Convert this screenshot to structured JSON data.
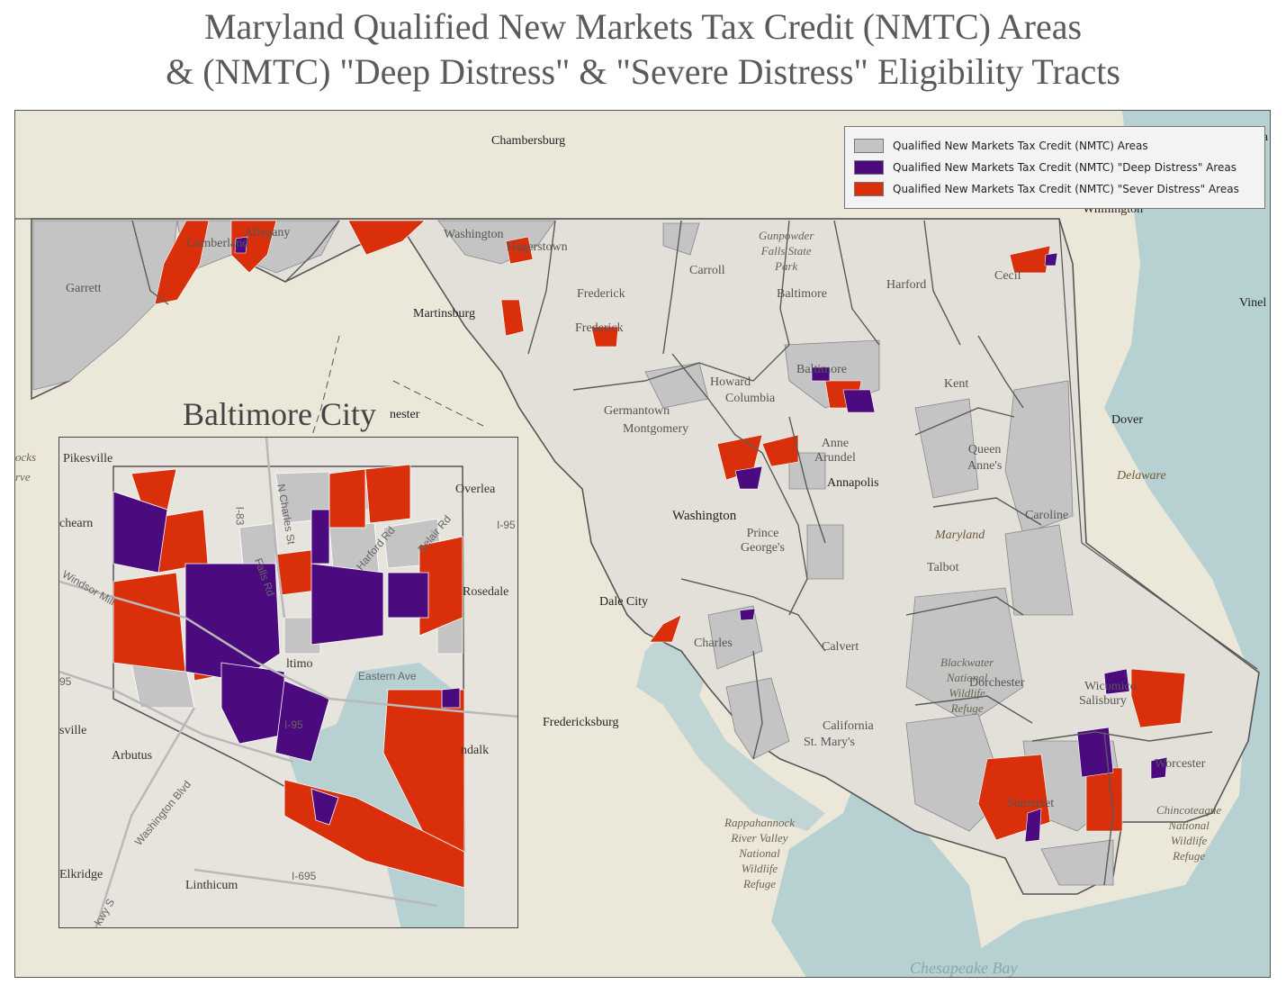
{
  "title": {
    "line1": "Maryland Qualified New Markets Tax Credit (NMTC) Areas",
    "line2": "& (NMTC) \"Deep Distress\" & \"Severe Distress\" Eligibility Tracts"
  },
  "legend": {
    "items": [
      {
        "label": "Qualified New Markets Tax Credit (NMTC) Areas",
        "color": "#c4c4c4"
      },
      {
        "label": "Qualified New Markets Tax Credit (NMTC) \"Deep Distress\" Areas",
        "color": "#4b0a7d"
      },
      {
        "label": "Qualified New Markets Tax Credit (NMTC) \"Sever Distress\" Areas",
        "color": "#d92f0a"
      }
    ]
  },
  "colors": {
    "land": "#ece8d9",
    "water": "#b7d0d2",
    "qualified": "#c4c4c4",
    "deep": "#4b0a7d",
    "severe": "#d92f0a",
    "county_line": "#5a5a5a"
  },
  "places": {
    "chambersburg": "Chambersburg",
    "martinsburg": "Martinsburg",
    "winchester_partial": "nester",
    "dale_city": "Dale City",
    "fredericksburg": "Fredericksburg",
    "washington": "Washington",
    "annapolis": "Annapolis",
    "dover": "Dover",
    "wilmington": "Wilmington",
    "vineland_partial": "Vinel",
    "topright_partial": "ia",
    "germantown": "Germantown",
    "columbia": "Columbia",
    "baltimore_city": "Baltimore",
    "salisbury": "Salisbury",
    "california": "California",
    "hagerstown": "Hagerstown",
    "cumberland": "Cumberland",
    "frederick_city": "Frederick",
    "locks_partial": "ocks",
    "erve_partial": "rve"
  },
  "counties": {
    "garrett": "Garrett",
    "allegany": "Allegany",
    "washington": "Washington",
    "frederick": "Frederick",
    "carroll": "Carroll",
    "baltimore": "Baltimore",
    "harford": "Harford",
    "cecil": "Cecil",
    "howard": "Howard",
    "montgomery": "Montgomery",
    "anne_arundel": "Anne\nArundel",
    "prince_georges": "Prince\nGeorge's",
    "charles": "Charles",
    "calvert": "Calvert",
    "st_marys": "St. Mary's",
    "kent": "Kent",
    "queen_annes": "Queen\nAnne's",
    "caroline": "Caroline",
    "talbot": "Talbot",
    "dorchester": "Dorchester",
    "wicomico": "Wicomico",
    "somerset": "Somerset",
    "worcester": "Worcester"
  },
  "parks": {
    "gunpowder": "Gunpowder\nFalls State\nPark",
    "blackwater": "Blackwater\nNational\nWildlife\nRefuge",
    "rappahannock": "Rappahannock\nRiver Valley\nNational\nWildlife\nRefuge",
    "chincoteague": "Chincoteague\nNational\nWildlife\nRefuge"
  },
  "states": {
    "maryland": "Maryland",
    "delaware": "Delaware"
  },
  "water_labels": {
    "chesapeake": "Chesapeake Bay"
  },
  "inset": {
    "title": "Baltimore City",
    "labels": {
      "pikesville": "Pikesville",
      "overlea": "Overlea",
      "woodlawn_partial": "chearn",
      "rosedale": "Rosedale",
      "catonsville_partial": "sville",
      "arbutus": "Arbutus",
      "dundalk_partial": "ndalk",
      "elkridge": "Elkridge",
      "linthicum": "Linthicum",
      "baltimore_partial": "ltimo"
    },
    "roads": {
      "i95_a": "I-95",
      "i95_b": "I-95",
      "i95_c": "95",
      "i83": "I-83",
      "i695": "I-695",
      "eastern_ave": "Eastern Ave",
      "harford_rd": "Harford Rd",
      "belair_rd": "Belair Rd",
      "falls_rd": "Falls Rd",
      "n_charles": "N Charles St",
      "washington_blvd": "Washington Blvd",
      "windsor_mill": "Windsor Mill",
      "pkwy_partial": "kwy S"
    }
  }
}
